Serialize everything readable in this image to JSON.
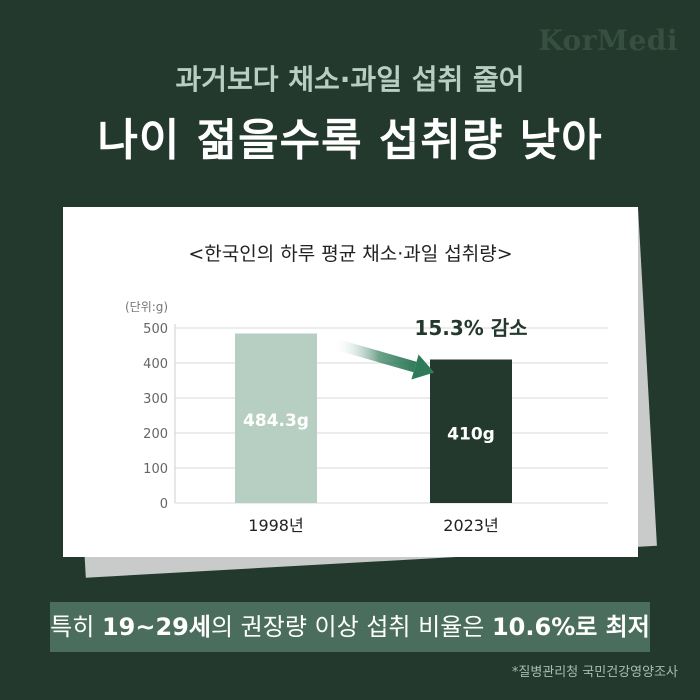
{
  "brand": {
    "logo": "KorMedi"
  },
  "headline": {
    "line1": "과거보다 채소·과일 섭취 줄어",
    "line2": "나이 젊을수록 섭취량 낮아"
  },
  "chart_data": {
    "type": "bar",
    "title": "<한국인의 하루 평균 채소·과일 섭취량>",
    "unit_label": "(단위:g)",
    "categories": [
      "1998년",
      "2023년"
    ],
    "values": [
      484.3,
      410
    ],
    "value_labels": [
      "484.3g",
      "410g"
    ],
    "bar_colors": [
      "#b7cfc2",
      "#24392e"
    ],
    "ylim": [
      0,
      500
    ],
    "yticks": [
      "0",
      "100",
      "200",
      "300",
      "400",
      "500"
    ],
    "grid": true,
    "annotation": {
      "text": "15.3% 감소",
      "arrow_color": "#2f7a59"
    }
  },
  "callout": {
    "prefix": "특히 ",
    "highlight1": "19~29세",
    "middle": "의 권장량 이상 섭취 비율은 ",
    "highlight2": "10.6%로 최저"
  },
  "source": "*질병관리청 국민건강영양조사",
  "colors": {
    "background": "#24392e",
    "accent_light": "#b7cfc2",
    "callout_bg": "#4b6d5d"
  }
}
